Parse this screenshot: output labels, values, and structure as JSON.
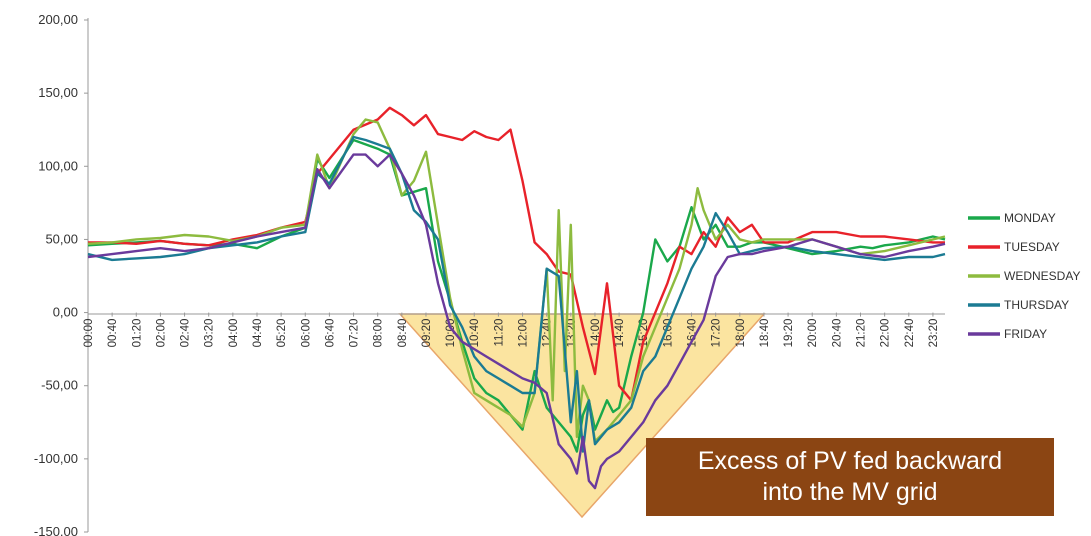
{
  "chart_data": {
    "type": "line",
    "title": "",
    "xlabel": "",
    "ylabel": "",
    "ylim": [
      -150,
      200
    ],
    "yticks": [
      "200,00",
      "150,00",
      "100,00",
      "50,00",
      "0,00",
      "-50,00",
      "-100,00",
      "-150,00"
    ],
    "ytick_values": [
      200,
      150,
      100,
      50,
      0,
      -50,
      -100,
      -150
    ],
    "x_range": [
      0,
      1420
    ],
    "xticks": [
      "00:00",
      "00:40",
      "01:20",
      "02:00",
      "02:40",
      "03:20",
      "04:00",
      "04:40",
      "05:20",
      "06:00",
      "06:40",
      "07:20",
      "08:00",
      "08:40",
      "09:20",
      "10:00",
      "10:40",
      "11:20",
      "12:00",
      "12:40",
      "13:20",
      "14:00",
      "14:40",
      "15:20",
      "16:00",
      "16:40",
      "17:20",
      "18:00",
      "18:40",
      "19:20",
      "20:00",
      "20:40",
      "21:20",
      "22:00",
      "22:40",
      "23:20"
    ],
    "xtick_minutes": [
      0,
      40,
      80,
      120,
      160,
      200,
      240,
      280,
      320,
      360,
      400,
      440,
      480,
      520,
      560,
      600,
      640,
      680,
      720,
      760,
      800,
      840,
      880,
      920,
      960,
      1000,
      1040,
      1080,
      1120,
      1160,
      1200,
      1240,
      1280,
      1320,
      1360,
      1400
    ],
    "legend_position": "right",
    "series": [
      {
        "name": "MONDAY",
        "color": "#1aa84b",
        "x": [
          0,
          40,
          80,
          120,
          160,
          200,
          240,
          280,
          320,
          360,
          380,
          400,
          440,
          480,
          500,
          520,
          560,
          580,
          600,
          620,
          640,
          660,
          680,
          700,
          720,
          740,
          760,
          780,
          800,
          810,
          820,
          830,
          840,
          850,
          860,
          870,
          880,
          900,
          920,
          940,
          960,
          980,
          1000,
          1020,
          1040,
          1060,
          1080,
          1100,
          1120,
          1160,
          1200,
          1240,
          1280,
          1300,
          1320,
          1360,
          1400,
          1420
        ],
        "y": [
          46,
          47,
          48,
          49,
          47,
          46,
          47,
          44,
          52,
          58,
          105,
          92,
          118,
          112,
          108,
          80,
          85,
          35,
          8,
          -20,
          -45,
          -55,
          -60,
          -70,
          -80,
          -40,
          -65,
          -75,
          -85,
          -95,
          -70,
          -60,
          -80,
          -70,
          -60,
          -68,
          -65,
          -30,
          0,
          50,
          35,
          45,
          72,
          50,
          60,
          45,
          45,
          48,
          48,
          44,
          40,
          42,
          45,
          44,
          46,
          48,
          52,
          50
        ]
      },
      {
        "name": "TUESDAY",
        "color": "#e8222a",
        "x": [
          0,
          40,
          80,
          120,
          160,
          200,
          240,
          280,
          320,
          360,
          380,
          400,
          440,
          480,
          500,
          520,
          540,
          560,
          580,
          600,
          620,
          640,
          660,
          680,
          700,
          720,
          740,
          760,
          780,
          800,
          820,
          840,
          860,
          880,
          900,
          920,
          940,
          960,
          980,
          1000,
          1020,
          1040,
          1060,
          1080,
          1100,
          1120,
          1160,
          1200,
          1240,
          1280,
          1320,
          1360,
          1400,
          1420
        ],
        "y": [
          48,
          48,
          47,
          49,
          47,
          46,
          50,
          53,
          58,
          62,
          95,
          105,
          125,
          132,
          140,
          135,
          128,
          135,
          122,
          120,
          118,
          124,
          120,
          118,
          125,
          90,
          48,
          40,
          28,
          26,
          -10,
          -42,
          20,
          -50,
          -60,
          -20,
          0,
          20,
          45,
          40,
          55,
          45,
          65,
          55,
          60,
          48,
          48,
          55,
          55,
          52,
          52,
          50,
          48,
          48
        ]
      },
      {
        "name": "WEDNESDAY",
        "color": "#8dbb3f",
        "x": [
          0,
          40,
          80,
          120,
          160,
          200,
          240,
          280,
          320,
          360,
          380,
          400,
          440,
          460,
          480,
          500,
          520,
          540,
          560,
          580,
          600,
          620,
          640,
          660,
          680,
          700,
          720,
          740,
          760,
          770,
          780,
          790,
          800,
          810,
          820,
          830,
          840,
          860,
          880,
          900,
          920,
          940,
          960,
          980,
          1000,
          1010,
          1020,
          1040,
          1060,
          1080,
          1100,
          1120,
          1160,
          1200,
          1240,
          1280,
          1320,
          1360,
          1400,
          1420
        ],
        "y": [
          47,
          48,
          50,
          51,
          53,
          52,
          49,
          52,
          58,
          60,
          108,
          85,
          122,
          132,
          130,
          112,
          80,
          90,
          110,
          60,
          10,
          -25,
          -55,
          -60,
          -65,
          -70,
          -78,
          -55,
          30,
          -60,
          70,
          -40,
          60,
          -85,
          -50,
          -60,
          -88,
          -80,
          -70,
          -60,
          -30,
          -10,
          10,
          30,
          60,
          85,
          70,
          50,
          60,
          50,
          48,
          50,
          50,
          50,
          45,
          40,
          42,
          46,
          50,
          52
        ]
      },
      {
        "name": "THURSDAY",
        "color": "#1b7b93",
        "x": [
          0,
          40,
          80,
          120,
          160,
          200,
          240,
          280,
          320,
          360,
          380,
          400,
          440,
          460,
          480,
          500,
          520,
          540,
          560,
          580,
          600,
          620,
          640,
          660,
          680,
          700,
          720,
          740,
          760,
          780,
          800,
          810,
          820,
          830,
          840,
          860,
          880,
          900,
          920,
          940,
          960,
          980,
          1000,
          1020,
          1040,
          1060,
          1080,
          1100,
          1120,
          1160,
          1200,
          1240,
          1280,
          1320,
          1360,
          1400,
          1420
        ],
        "y": [
          40,
          36,
          37,
          38,
          40,
          44,
          46,
          48,
          52,
          55,
          95,
          88,
          120,
          118,
          115,
          112,
          95,
          70,
          62,
          50,
          5,
          -10,
          -30,
          -40,
          -45,
          -50,
          -55,
          -55,
          30,
          25,
          -75,
          -40,
          -95,
          -60,
          -90,
          -80,
          -75,
          -65,
          -40,
          -30,
          -10,
          10,
          30,
          45,
          68,
          55,
          40,
          42,
          44,
          45,
          42,
          40,
          38,
          36,
          38,
          38,
          40
        ]
      },
      {
        "name": "FRIDAY",
        "color": "#6a3a9c",
        "x": [
          0,
          40,
          80,
          120,
          160,
          200,
          240,
          280,
          320,
          360,
          380,
          400,
          440,
          460,
          480,
          500,
          520,
          540,
          560,
          580,
          600,
          620,
          640,
          660,
          680,
          700,
          720,
          740,
          760,
          780,
          800,
          810,
          820,
          830,
          840,
          850,
          860,
          880,
          900,
          920,
          940,
          960,
          980,
          1000,
          1020,
          1040,
          1060,
          1080,
          1100,
          1120,
          1160,
          1200,
          1240,
          1280,
          1320,
          1360,
          1400,
          1420
        ],
        "y": [
          38,
          40,
          42,
          44,
          42,
          44,
          48,
          52,
          55,
          58,
          98,
          85,
          108,
          108,
          100,
          108,
          95,
          80,
          60,
          20,
          -10,
          -20,
          -25,
          -30,
          -35,
          -40,
          -45,
          -48,
          -55,
          -90,
          -100,
          -110,
          -85,
          -115,
          -120,
          -105,
          -100,
          -95,
          -85,
          -75,
          -60,
          -50,
          -35,
          -20,
          -5,
          25,
          38,
          40,
          40,
          42,
          45,
          50,
          45,
          40,
          38,
          42,
          45,
          47
        ]
      }
    ],
    "annotation": "Excess of PV fed backward\ninto the MV grid"
  }
}
